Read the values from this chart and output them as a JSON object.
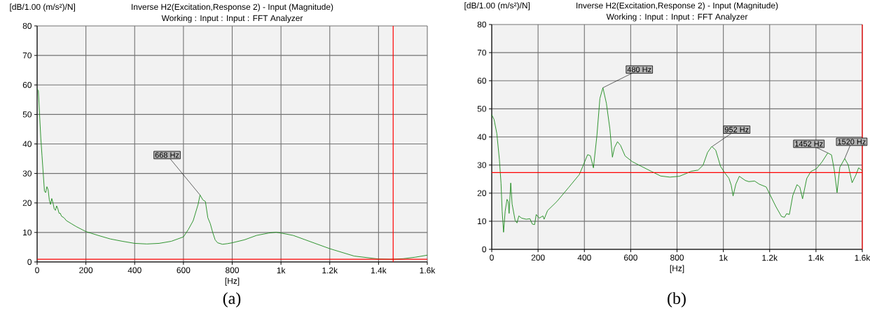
{
  "chart_data": [
    {
      "type": "line",
      "title": "Inverse H2(Excitation,Response 2) - Input (Magnitude)",
      "subtitle": "Working : Input : Input : FFT Analyzer",
      "ylabel": "[dB/1.00 (m/s²)/N]",
      "xlabel": "[Hz]",
      "x": [
        0,
        5,
        10,
        15,
        20,
        25,
        30,
        35,
        40,
        45,
        50,
        55,
        60,
        65,
        70,
        75,
        80,
        85,
        90,
        95,
        100,
        110,
        120,
        140,
        160,
        200,
        250,
        300,
        350,
        400,
        450,
        500,
        550,
        600,
        620,
        640,
        660,
        668,
        680,
        690,
        700,
        710,
        720,
        730,
        740,
        760,
        780,
        800,
        850,
        900,
        950,
        980,
        1000,
        1050,
        1100,
        1200,
        1300,
        1400,
        1450,
        1500,
        1550,
        1600
      ],
      "values": [
        58.7,
        58,
        50,
        42,
        36,
        30,
        24,
        23.5,
        25.5,
        24.5,
        21,
        19.5,
        21.5,
        20,
        18,
        17.5,
        19,
        18,
        16.5,
        16.5,
        15.5,
        15,
        14,
        13,
        12,
        10.3,
        9,
        7.8,
        7,
        6.3,
        6.1,
        6.3,
        7,
        8.5,
        11,
        14,
        19.5,
        22.7,
        21,
        20.5,
        15,
        13,
        10,
        7.5,
        6.5,
        6,
        6.2,
        6.5,
        7.5,
        9,
        9.8,
        10.1,
        9.8,
        9,
        7.5,
        4.5,
        2,
        1,
        0.9,
        1.1,
        1.6,
        2.3
      ],
      "color": "#1a8a1a",
      "xlim": [
        0,
        1600
      ],
      "ylim": [
        0,
        80
      ],
      "xticks": [
        0,
        200,
        400,
        600,
        800,
        {
          "value": 1000,
          "label": "1k"
        },
        {
          "value": 1200,
          "label": "1.2k"
        },
        {
          "value": 1400,
          "label": "1.4k"
        },
        {
          "value": 1600,
          "label": "1.6k"
        }
      ],
      "yticks": [
        0,
        10,
        20,
        30,
        40,
        50,
        60,
        70,
        80
      ],
      "grid": true,
      "ref_lines": [
        {
          "axis": "y",
          "value": 0.9,
          "color": "#ff0000"
        },
        {
          "axis": "x",
          "value": 1460,
          "color": "#ff0000"
        }
      ],
      "annotations": [
        {
          "text": "668 Hz",
          "x": 668,
          "y": 22.7
        },
        "(a)"
      ]
    },
    {
      "type": "line",
      "title": "Inverse H2(Excitation,Response 2) - Input (Magnitude)",
      "subtitle": "Working : Input : Input : FFT Analyzer",
      "ylabel": "[dB/1.00 (m/s²)/N]",
      "xlabel": "[Hz]",
      "x": [
        0,
        10,
        22,
        33,
        40,
        45,
        51,
        58,
        66,
        71,
        75,
        82,
        88,
        101,
        109,
        117,
        129,
        149,
        165,
        175,
        185,
        192,
        205,
        221,
        226,
        241,
        281,
        332,
        378,
        393,
        414,
        426,
        439,
        454,
        467,
        480,
        495,
        510,
        521,
        530,
        543,
        556,
        576,
        607,
        647,
        688,
        729,
        769,
        810,
        840,
        861,
        891,
        912,
        932,
        950,
        967,
        988,
        1008,
        1024,
        1034,
        1042,
        1054,
        1069,
        1095,
        1110,
        1135,
        1155,
        1185,
        1203,
        1227,
        1251,
        1264,
        1273,
        1285,
        1300,
        1318,
        1330,
        1342,
        1360,
        1378,
        1402,
        1426,
        1451,
        1467,
        1479,
        1491,
        1503,
        1524,
        1539,
        1556,
        1572,
        1584,
        1600
      ],
      "values": [
        47.9,
        46.2,
        41.2,
        32,
        23.6,
        13.6,
        6.1,
        13.6,
        17.8,
        17,
        12.8,
        23.6,
        16.1,
        10.3,
        9.4,
        11.9,
        11.1,
        10.7,
        10.9,
        9,
        8.8,
        12.4,
        11.1,
        11.9,
        10.7,
        13.8,
        17,
        22,
        26.6,
        29.5,
        33.7,
        33.3,
        29,
        40.4,
        53.7,
        57.5,
        52,
        42.9,
        32.8,
        36.2,
        38.3,
        37,
        33.2,
        31.2,
        29.5,
        27.8,
        26.1,
        25.7,
        26,
        27,
        27.8,
        28.2,
        29.9,
        34.5,
        36.6,
        35.3,
        29.5,
        27,
        25.3,
        22.8,
        19,
        23.2,
        26,
        24.5,
        24.1,
        24.3,
        23.2,
        22.2,
        19.2,
        15.2,
        11.7,
        11.4,
        12.7,
        12.4,
        19.2,
        23,
        22.2,
        18,
        25.2,
        27.7,
        28.7,
        31.1,
        34.3,
        33.6,
        28.2,
        20.2,
        29.2,
        32.3,
        30.1,
        23.7,
        26.4,
        29,
        28
      ],
      "color": "#1a8a1a",
      "xlim": [
        0,
        1600
      ],
      "ylim": [
        0,
        80
      ],
      "xticks": [
        0,
        200,
        400,
        600,
        800,
        {
          "value": 1000,
          "label": "1k"
        },
        {
          "value": 1200,
          "label": "1.2k"
        },
        {
          "value": 1400,
          "label": "1.4k"
        },
        {
          "value": 1600,
          "label": "1.6k"
        }
      ],
      "yticks": [
        0,
        10,
        20,
        30,
        40,
        50,
        60,
        70,
        80
      ],
      "grid": true,
      "ref_lines": [
        {
          "axis": "y",
          "value": 27.3,
          "color": "#ff0000"
        },
        {
          "axis": "x",
          "value": 1600,
          "color": "#ff0000"
        }
      ],
      "annotations": [
        {
          "text": "480 Hz",
          "x": 480,
          "y": 57.5
        },
        {
          "text": "952 Hz",
          "x": 952,
          "y": 36.6
        },
        {
          "text": "1452 Hz",
          "x": 1451,
          "y": 34.3
        },
        {
          "text": "1520 Hz",
          "x": 1524,
          "y": 32.3
        },
        "(b)"
      ]
    }
  ]
}
